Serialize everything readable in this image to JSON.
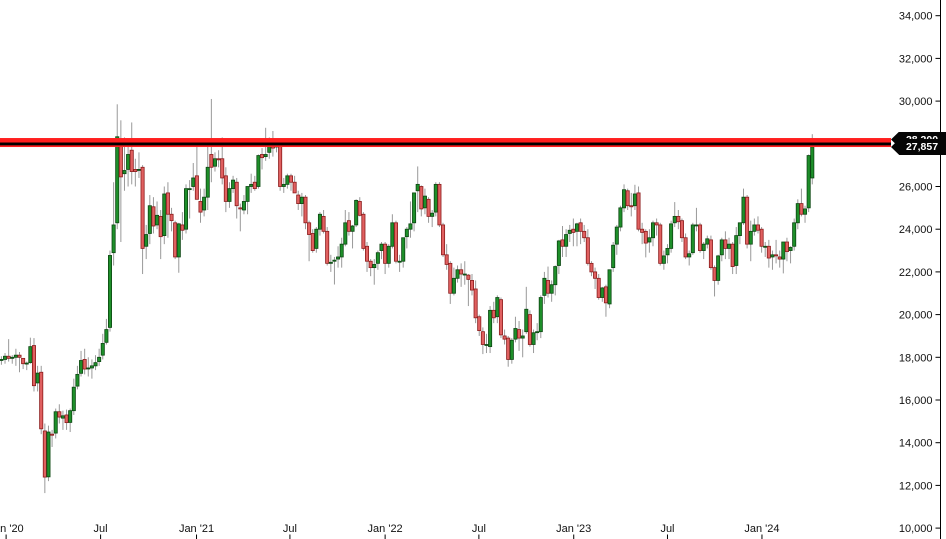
{
  "chart_data": {
    "type": "candlestick",
    "title": "",
    "y_axis": {
      "ticks": [
        34000,
        32000,
        30000,
        28000,
        26000,
        24000,
        22000,
        20000,
        18000,
        16000,
        14000,
        12000,
        10000
      ]
    },
    "x_axis": {
      "ticks": [
        {
          "label": "Jan '20",
          "week": 1.3
        },
        {
          "label": "Jul",
          "week": 27.4
        },
        {
          "label": "Jan '21",
          "week": 53.9
        },
        {
          "label": "Jul",
          "week": 79.7
        },
        {
          "label": "Jan '22",
          "week": 106.0
        },
        {
          "label": "Jul",
          "week": 131.9
        },
        {
          "label": "Jan '23",
          "week": 158.1
        },
        {
          "label": "Jul",
          "week": 184.0
        },
        {
          "label": "Jan '24",
          "week": 210.1
        }
      ]
    },
    "horizontal_line": {
      "value": 28200,
      "label": "28,200",
      "color": "#ff1f1f"
    },
    "last_price": {
      "value": 27857,
      "label": "27,857"
    },
    "interval": "1 week",
    "start_date": "2019-12-23",
    "colors": {
      "up_fill": "#1e8f2a",
      "up_border": "#0c4712",
      "down_fill": "#e06060",
      "down_border": "#8c1c1c",
      "wick": "#999999",
      "axis_text": "#111111",
      "tag_bg": "#050505",
      "tag_text": "#ffffff"
    },
    "candles": [
      [
        17850,
        18050,
        17650,
        17900
      ],
      [
        17900,
        18200,
        17700,
        18050
      ],
      [
        18050,
        18850,
        17800,
        17950
      ],
      [
        17950,
        18100,
        17700,
        18000
      ],
      [
        18000,
        18400,
        17600,
        18100
      ],
      [
        18100,
        18250,
        17300,
        18000
      ],
      [
        17950,
        17950,
        17450,
        17700
      ],
      [
        17700,
        17800,
        17400,
        17730
      ],
      [
        17750,
        18920,
        17700,
        18500
      ],
      [
        18550,
        18900,
        16400,
        16670
      ],
      [
        16800,
        17600,
        16400,
        17260
      ],
      [
        17300,
        17600,
        14400,
        14650
      ],
      [
        14550,
        14900,
        11640,
        12390
      ],
      [
        12400,
        14800,
        12200,
        14500
      ],
      [
        14400,
        14600,
        13800,
        14350
      ],
      [
        14450,
        15600,
        14200,
        15450
      ],
      [
        15450,
        15800,
        14900,
        15200
      ],
      [
        15150,
        15500,
        14600,
        15260
      ],
      [
        15300,
        15550,
        14600,
        14940
      ],
      [
        14950,
        15600,
        14500,
        15500
      ],
      [
        15500,
        17000,
        15300,
        16600
      ],
      [
        16650,
        17600,
        16500,
        17200
      ],
      [
        17250,
        18300,
        17100,
        17850
      ],
      [
        17900,
        18400,
        17200,
        17450
      ],
      [
        17500,
        18000,
        17100,
        17500
      ],
      [
        17500,
        17900,
        17000,
        17600
      ],
      [
        17600,
        18100,
        17400,
        17750
      ],
      [
        17800,
        18400,
        17600,
        18000
      ],
      [
        18100,
        19100,
        17900,
        18650
      ],
      [
        18700,
        19800,
        18600,
        19300
      ],
      [
        19400,
        23000,
        19200,
        22770
      ],
      [
        22900,
        26200,
        22300,
        24200
      ],
      [
        24300,
        29850,
        24000,
        28330
      ],
      [
        28100,
        29100,
        23400,
        26450
      ],
      [
        26600,
        28300,
        25800,
        26750
      ],
      [
        26800,
        27900,
        26000,
        27500
      ],
      [
        27700,
        29000,
        26100,
        26700
      ],
      [
        26800,
        27300,
        26000,
        26700
      ],
      [
        26800,
        27600,
        26400,
        26800
      ],
      [
        26900,
        27000,
        21900,
        23100
      ],
      [
        23200,
        24200,
        22600,
        23750
      ],
      [
        23800,
        25600,
        23300,
        25100
      ],
      [
        25050,
        25500,
        23800,
        24150
      ],
      [
        24200,
        25300,
        24000,
        24650
      ],
      [
        24600,
        24900,
        22600,
        23650
      ],
      [
        23700,
        26000,
        23300,
        25650
      ],
      [
        25700,
        26200,
        23600,
        24700
      ],
      [
        24700,
        25000,
        23900,
        24400
      ],
      [
        24300,
        24400,
        22600,
        22700
      ],
      [
        22700,
        24300,
        21960,
        24250
      ],
      [
        24200,
        24800,
        23500,
        23950
      ],
      [
        24000,
        26100,
        23800,
        25900
      ],
      [
        25900,
        26300,
        24500,
        25900
      ],
      [
        26000,
        27100,
        25800,
        26400
      ],
      [
        26500,
        28000,
        25700,
        25400
      ],
      [
        25300,
        25900,
        24300,
        24800
      ],
      [
        24900,
        25900,
        24600,
        25500
      ],
      [
        25500,
        28000,
        24900,
        26900
      ],
      [
        27500,
        30100,
        26200,
        26900
      ],
      [
        26950,
        27600,
        26700,
        27300
      ],
      [
        27300,
        27700,
        26900,
        27250
      ],
      [
        27300,
        28300,
        26100,
        26400
      ],
      [
        26500,
        26900,
        24800,
        25300
      ],
      [
        25300,
        26200,
        25000,
        25900
      ],
      [
        25900,
        26500,
        25700,
        26300
      ],
      [
        26200,
        26400,
        24500,
        25100
      ],
      [
        25000,
        25200,
        23900,
        24950
      ],
      [
        24900,
        25600,
        24700,
        25300
      ],
      [
        25300,
        26000,
        24700,
        26000
      ],
      [
        26000,
        26600,
        25700,
        26100
      ],
      [
        26200,
        26500,
        25800,
        25900
      ],
      [
        26000,
        27500,
        25900,
        27450
      ],
      [
        27500,
        27800,
        26800,
        27350
      ],
      [
        27400,
        28750,
        27200,
        27500
      ],
      [
        27600,
        28300,
        27300,
        27900
      ],
      [
        28000,
        28600,
        27400,
        27800
      ],
      [
        27850,
        28200,
        27600,
        28150
      ],
      [
        28000,
        28050,
        25800,
        26000
      ],
      [
        26000,
        26400,
        25700,
        26100
      ],
      [
        26100,
        26600,
        25900,
        26500
      ],
      [
        26500,
        26600,
        25800,
        26200
      ],
      [
        26200,
        26500,
        25700,
        25700
      ],
      [
        25600,
        25800,
        24900,
        25200
      ],
      [
        25200,
        25700,
        24600,
        25500
      ],
      [
        25500,
        25600,
        24000,
        24300
      ],
      [
        24300,
        24400,
        22500,
        23750
      ],
      [
        23800,
        24000,
        22900,
        23000
      ],
      [
        23100,
        24100,
        22900,
        24000
      ],
      [
        24000,
        24800,
        23700,
        24700
      ],
      [
        24600,
        24900,
        23800,
        23900
      ],
      [
        23900,
        24100,
        22300,
        22400
      ],
      [
        22400,
        22800,
        22000,
        22450
      ],
      [
        22500,
        22700,
        21410,
        22550
      ],
      [
        22600,
        23200,
        22200,
        22700
      ],
      [
        22700,
        23600,
        22200,
        23300
      ],
      [
        23300,
        24900,
        23200,
        24300
      ],
      [
        24400,
        24800,
        23700,
        23900
      ],
      [
        23900,
        24200,
        23100,
        24150
      ],
      [
        24200,
        25400,
        24100,
        25350
      ],
      [
        25300,
        25500,
        24600,
        24650
      ],
      [
        24700,
        24800,
        23000,
        23100
      ],
      [
        23200,
        23400,
        22000,
        22500
      ],
      [
        22500,
        22600,
        21800,
        22200
      ],
      [
        22200,
        22600,
        21400,
        22350
      ],
      [
        22400,
        23000,
        22100,
        22900
      ],
      [
        23000,
        23400,
        22600,
        23300
      ],
      [
        23300,
        23400,
        21900,
        22400
      ],
      [
        22400,
        23300,
        22200,
        23200
      ],
      [
        23200,
        24700,
        23100,
        24300
      ],
      [
        24300,
        24400,
        22400,
        22500
      ],
      [
        22500,
        22800,
        22000,
        22500
      ],
      [
        22500,
        23600,
        22200,
        23600
      ],
      [
        23650,
        24100,
        23100,
        24000
      ],
      [
        24000,
        25300,
        23600,
        24250
      ],
      [
        24300,
        25700,
        23900,
        25700
      ],
      [
        25800,
        26940,
        24800,
        26100
      ],
      [
        26000,
        26050,
        24600,
        24950
      ],
      [
        25000,
        25900,
        24700,
        25550
      ],
      [
        25400,
        25500,
        24300,
        24600
      ],
      [
        24600,
        24900,
        24100,
        24750
      ],
      [
        24800,
        26200,
        24600,
        26100
      ],
      [
        26100,
        26200,
        24100,
        24200
      ],
      [
        24200,
        24300,
        22700,
        22800
      ],
      [
        22800,
        23300,
        22100,
        22350
      ],
      [
        22400,
        22500,
        20500,
        21000
      ],
      [
        21000,
        22200,
        20900,
        21700
      ],
      [
        21700,
        22300,
        21500,
        22100
      ],
      [
        22100,
        22400,
        21300,
        21900
      ],
      [
        21900,
        22500,
        21400,
        21900
      ],
      [
        21850,
        21900,
        20400,
        21650
      ],
      [
        21600,
        21900,
        20900,
        21150
      ],
      [
        21200,
        21600,
        19600,
        19850
      ],
      [
        19900,
        20000,
        19000,
        19250
      ],
      [
        19200,
        19400,
        18150,
        18600
      ],
      [
        18600,
        19100,
        18200,
        18600
      ],
      [
        18500,
        20400,
        18200,
        20200
      ],
      [
        20200,
        20600,
        19600,
        19850
      ],
      [
        19900,
        20900,
        19600,
        20800
      ],
      [
        20700,
        20800,
        18900,
        19050
      ],
      [
        19000,
        19300,
        18600,
        18850
      ],
      [
        18900,
        19000,
        17560,
        17900
      ],
      [
        17900,
        18900,
        17700,
        18800
      ],
      [
        18850,
        19900,
        18700,
        19350
      ],
      [
        19300,
        19700,
        18300,
        18900
      ],
      [
        18900,
        19300,
        18000,
        19000
      ],
      [
        19200,
        21300,
        19100,
        20250
      ],
      [
        20000,
        20200,
        18500,
        18600
      ],
      [
        18600,
        19300,
        18200,
        19150
      ],
      [
        19200,
        19600,
        18800,
        19200
      ],
      [
        19200,
        20900,
        18900,
        20800
      ],
      [
        20900,
        22000,
        20500,
        21700
      ],
      [
        21600,
        22250,
        20800,
        21000
      ],
      [
        21000,
        21600,
        20600,
        21400
      ],
      [
        21400,
        22300,
        20900,
        22250
      ],
      [
        22300,
        23500,
        21900,
        23450
      ],
      [
        23500,
        24150,
        22700,
        23200
      ],
      [
        23200,
        24000,
        22700,
        23750
      ],
      [
        23800,
        24200,
        23400,
        23950
      ],
      [
        24000,
        24500,
        23200,
        23850
      ],
      [
        23900,
        24300,
        23200,
        24250
      ],
      [
        24300,
        24500,
        23300,
        23900
      ],
      [
        23900,
        24200,
        23400,
        23600
      ],
      [
        23600,
        24000,
        22300,
        22400
      ],
      [
        22400,
        22500,
        21800,
        22000
      ],
      [
        22000,
        22200,
        21200,
        21700
      ],
      [
        21700,
        21900,
        20700,
        20800
      ],
      [
        20800,
        21300,
        20600,
        21250
      ],
      [
        21300,
        21400,
        19900,
        20550
      ],
      [
        20500,
        22100,
        20300,
        22100
      ],
      [
        22200,
        23400,
        22000,
        23250
      ],
      [
        23300,
        24200,
        22800,
        24100
      ],
      [
        24100,
        25100,
        23900,
        25000
      ],
      [
        25000,
        26100,
        24800,
        25850
      ],
      [
        25800,
        25900,
        24900,
        25100
      ],
      [
        25100,
        25700,
        24600,
        25050
      ],
      [
        25100,
        26080,
        24900,
        25650
      ],
      [
        25700,
        26000,
        23900,
        24000
      ],
      [
        24000,
        24300,
        23300,
        23850
      ],
      [
        23900,
        24000,
        22680,
        23350
      ],
      [
        23400,
        24000,
        22900,
        23600
      ],
      [
        23600,
        24400,
        23200,
        24300
      ],
      [
        24300,
        24500,
        23700,
        24200
      ],
      [
        24200,
        24300,
        22300,
        22400
      ],
      [
        22400,
        23000,
        22100,
        22750
      ],
      [
        22800,
        23300,
        22400,
        23100
      ],
      [
        23100,
        24400,
        22900,
        24250
      ],
      [
        24300,
        25270,
        24100,
        24600
      ],
      [
        24600,
        24900,
        24000,
        24350
      ],
      [
        24400,
        24500,
        23400,
        23600
      ],
      [
        23600,
        23800,
        22600,
        22700
      ],
      [
        22700,
        23000,
        22300,
        22850
      ],
      [
        22900,
        24300,
        22800,
        24200
      ],
      [
        24200,
        25000,
        23900,
        24200
      ],
      [
        24200,
        24300,
        22900,
        23000
      ],
      [
        23000,
        23400,
        22600,
        23300
      ],
      [
        23300,
        23700,
        23100,
        23550
      ],
      [
        23500,
        23700,
        22100,
        22200
      ],
      [
        22200,
        22300,
        20850,
        21600
      ],
      [
        21600,
        22800,
        21400,
        22750
      ],
      [
        22800,
        23600,
        22500,
        23500
      ],
      [
        23500,
        23900,
        22600,
        23100
      ],
      [
        23100,
        23600,
        22600,
        23300
      ],
      [
        23300,
        23400,
        21900,
        22250
      ],
      [
        22300,
        24100,
        21900,
        23700
      ],
      [
        23700,
        24300,
        23300,
        24300
      ],
      [
        24300,
        25900,
        24200,
        25500
      ],
      [
        25500,
        25600,
        23100,
        23300
      ],
      [
        23300,
        24400,
        22500,
        23900
      ],
      [
        23900,
        24500,
        23700,
        24200
      ],
      [
        24200,
        24600,
        23800,
        23950
      ],
      [
        24000,
        24100,
        22900,
        23200
      ],
      [
        23200,
        23400,
        22700,
        23200
      ],
      [
        23200,
        23500,
        22200,
        22650
      ],
      [
        22700,
        23000,
        22100,
        22800
      ],
      [
        22800,
        23500,
        22400,
        22750
      ],
      [
        22700,
        23000,
        22200,
        22600
      ],
      [
        22600,
        23400,
        21930,
        23400
      ],
      [
        23400,
        23600,
        22500,
        22950
      ],
      [
        23000,
        23200,
        22400,
        23150
      ],
      [
        23200,
        24500,
        23000,
        24300
      ],
      [
        24300,
        25400,
        24000,
        25200
      ],
      [
        25200,
        25900,
        24600,
        24700
      ],
      [
        24700,
        25100,
        24300,
        24950
      ],
      [
        25000,
        27500,
        24800,
        27450
      ],
      [
        26400,
        28450,
        26100,
        27857
      ]
    ]
  }
}
